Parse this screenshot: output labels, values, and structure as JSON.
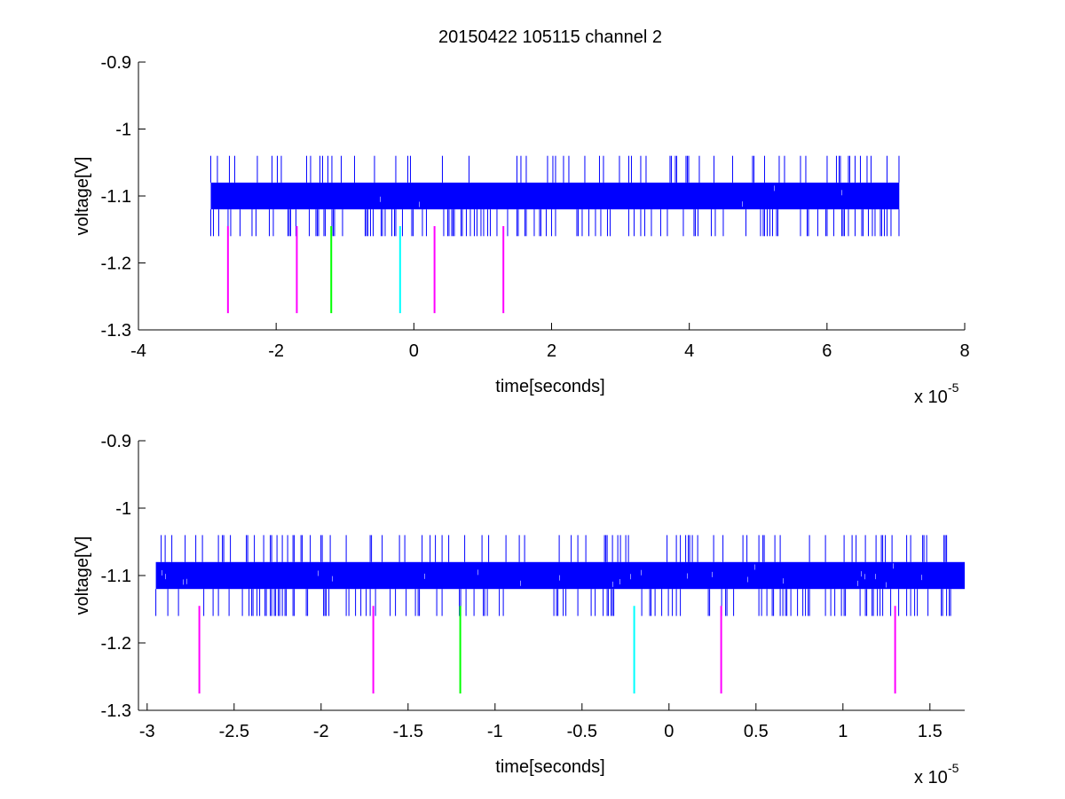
{
  "figure": {
    "title": "20150422 105115 channel 2"
  },
  "chart_data": [
    {
      "type": "line",
      "title": "20150422 105115 channel 2",
      "xlabel": "time[seconds]",
      "ylabel": "voltage[V]",
      "x_exponent_label": "x 10",
      "x_exponent": "-5",
      "xlim": [
        -4e-05,
        8e-05
      ],
      "ylim": [
        -1.3,
        -0.9
      ],
      "y_reversed": true,
      "grid": false,
      "xticks": [
        -4e-05,
        -2e-05,
        0,
        2e-05,
        4e-05,
        6e-05,
        8e-05
      ],
      "xtick_labels": [
        "-4",
        "-2",
        "0",
        "2",
        "4",
        "6",
        "8"
      ],
      "yticks": [
        -0.9,
        -1.0,
        -1.1,
        -1.2,
        -1.3
      ],
      "ytick_labels": [
        "-0.9",
        "-1",
        "-1.1",
        "-1.2",
        "-1.3"
      ],
      "signal": {
        "color": "#0000ff",
        "x_range": [
          -2.95e-05,
          7.05e-05
        ],
        "levels": [
          -1.04,
          -1.08,
          -1.12,
          -1.16
        ],
        "dense_band": [
          -1.08,
          -1.12
        ]
      },
      "markers": [
        {
          "x": -2.7e-05,
          "y_range": [
            -1.145,
            -1.275
          ],
          "color": "#ff00ff"
        },
        {
          "x": -1.7e-05,
          "y_range": [
            -1.145,
            -1.275
          ],
          "color": "#ff00ff"
        },
        {
          "x": -1.2e-05,
          "y_range": [
            -1.145,
            -1.275
          ],
          "color": "#00ff00"
        },
        {
          "x": -2e-06,
          "y_range": [
            -1.145,
            -1.275
          ],
          "color": "#00ffff"
        },
        {
          "x": 3e-06,
          "y_range": [
            -1.145,
            -1.275
          ],
          "color": "#ff00ff"
        },
        {
          "x": 1.3e-05,
          "y_range": [
            -1.145,
            -1.275
          ],
          "color": "#ff00ff"
        }
      ]
    },
    {
      "type": "line",
      "title": "",
      "xlabel": "time[seconds]",
      "ylabel": "voltage[V]",
      "x_exponent_label": "x 10",
      "x_exponent": "-5",
      "xlim": [
        -3.05e-05,
        1.7e-05
      ],
      "ylim": [
        -1.3,
        -0.9
      ],
      "y_reversed": true,
      "grid": false,
      "xticks": [
        -3e-05,
        -2.5e-05,
        -2e-05,
        -1.5e-05,
        -1e-05,
        -5e-06,
        0,
        5e-06,
        1e-05,
        1.5e-05
      ],
      "xtick_labels": [
        "-3",
        "-2.5",
        "-2",
        "-1.5",
        "-1",
        "-0.5",
        "0",
        "0.5",
        "1",
        "1.5"
      ],
      "yticks": [
        -0.9,
        -1.0,
        -1.1,
        -1.2,
        -1.3
      ],
      "ytick_labels": [
        "-0.9",
        "-1",
        "-1.1",
        "-1.2",
        "-1.3"
      ],
      "signal": {
        "color": "#0000ff",
        "x_range": [
          -2.95e-05,
          1.7e-05
        ],
        "levels": [
          -1.04,
          -1.08,
          -1.12,
          -1.16
        ],
        "dense_band": [
          -1.08,
          -1.12
        ]
      },
      "markers": [
        {
          "x": -2.7e-05,
          "y_range": [
            -1.145,
            -1.275
          ],
          "color": "#ff00ff"
        },
        {
          "x": -1.7e-05,
          "y_range": [
            -1.145,
            -1.275
          ],
          "color": "#ff00ff"
        },
        {
          "x": -1.2e-05,
          "y_range": [
            -1.145,
            -1.275
          ],
          "color": "#00ff00"
        },
        {
          "x": -2e-06,
          "y_range": [
            -1.145,
            -1.275
          ],
          "color": "#00ffff"
        },
        {
          "x": 3e-06,
          "y_range": [
            -1.145,
            -1.275
          ],
          "color": "#ff00ff"
        },
        {
          "x": 1.3e-05,
          "y_range": [
            -1.145,
            -1.275
          ],
          "color": "#ff00ff"
        }
      ]
    }
  ]
}
